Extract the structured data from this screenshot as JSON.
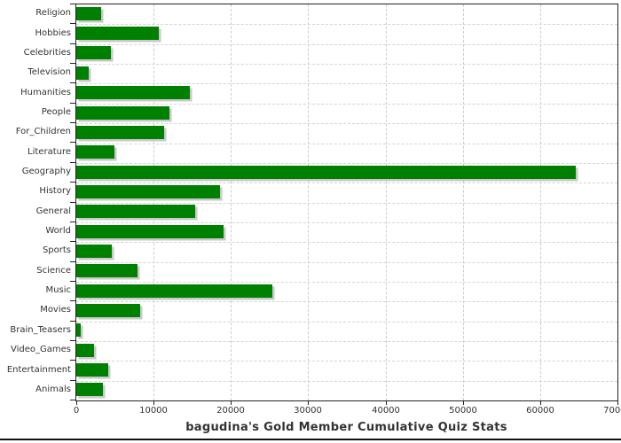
{
  "chart_data": {
    "type": "bar",
    "orientation": "horizontal",
    "title": "bagudina's Gold Member Cumulative Quiz Stats",
    "categories": [
      "Religion",
      "Hobbies",
      "Celebrities",
      "Television",
      "Humanities",
      "People",
      "For_Children",
      "Literature",
      "Geography",
      "History",
      "General",
      "World",
      "Sports",
      "Science",
      "Music",
      "Movies",
      "Brain_Teasers",
      "Video_Games",
      "Entertainment",
      "Animals"
    ],
    "values": [
      3200,
      10700,
      4500,
      1650,
      14700,
      12100,
      11350,
      4900,
      64600,
      18600,
      15400,
      19000,
      4550,
      7900,
      25300,
      8250,
      570,
      2300,
      4100,
      3400
    ],
    "xlabel": "",
    "ylabel": "",
    "xlim": [
      0,
      70000
    ],
    "x_ticks": [
      0,
      10000,
      20000,
      30000,
      40000,
      50000,
      60000,
      70000
    ],
    "grid": true,
    "legend": false
  },
  "styles": {
    "bar_color": "#008000",
    "bar_shadow_color": "#c9c9c9",
    "grid_color": "#cccccc",
    "axis_color": "#222222",
    "text_color": "#333333",
    "title_color": "#333333",
    "background": "#ffffff"
  }
}
